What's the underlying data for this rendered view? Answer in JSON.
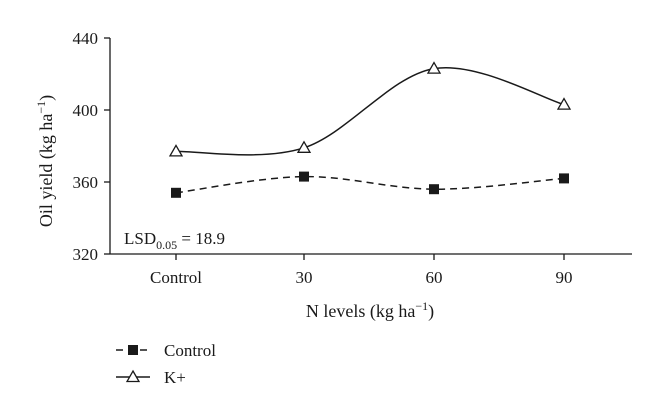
{
  "chart_data": {
    "type": "line",
    "title": "",
    "categories": [
      "Control",
      "30",
      "60",
      "90"
    ],
    "xlabel": "N levels (kg ha",
    "xlabel_sup": "−1",
    "xlabel_end": ")",
    "ylabel": "Oil yield (kg ha",
    "ylabel_sup": "−1",
    "ylabel_end": ")",
    "ylim": [
      320,
      440
    ],
    "yticks": [
      "320",
      "360",
      "400",
      "440"
    ],
    "grid": false,
    "legend_position": "bottom-left",
    "series": [
      {
        "name": "Control",
        "values": [
          354,
          363,
          356,
          362
        ],
        "marker": "square-filled",
        "line": "dashed",
        "color": "#1a1a1a"
      },
      {
        "name": "K+",
        "values": [
          377,
          379,
          423,
          403
        ],
        "marker": "triangle-open",
        "line": "solid",
        "color": "#1a1a1a"
      }
    ],
    "annotation": {
      "prefix": "LSD",
      "subscript": "0.05",
      "suffix": " = 18.9"
    }
  }
}
